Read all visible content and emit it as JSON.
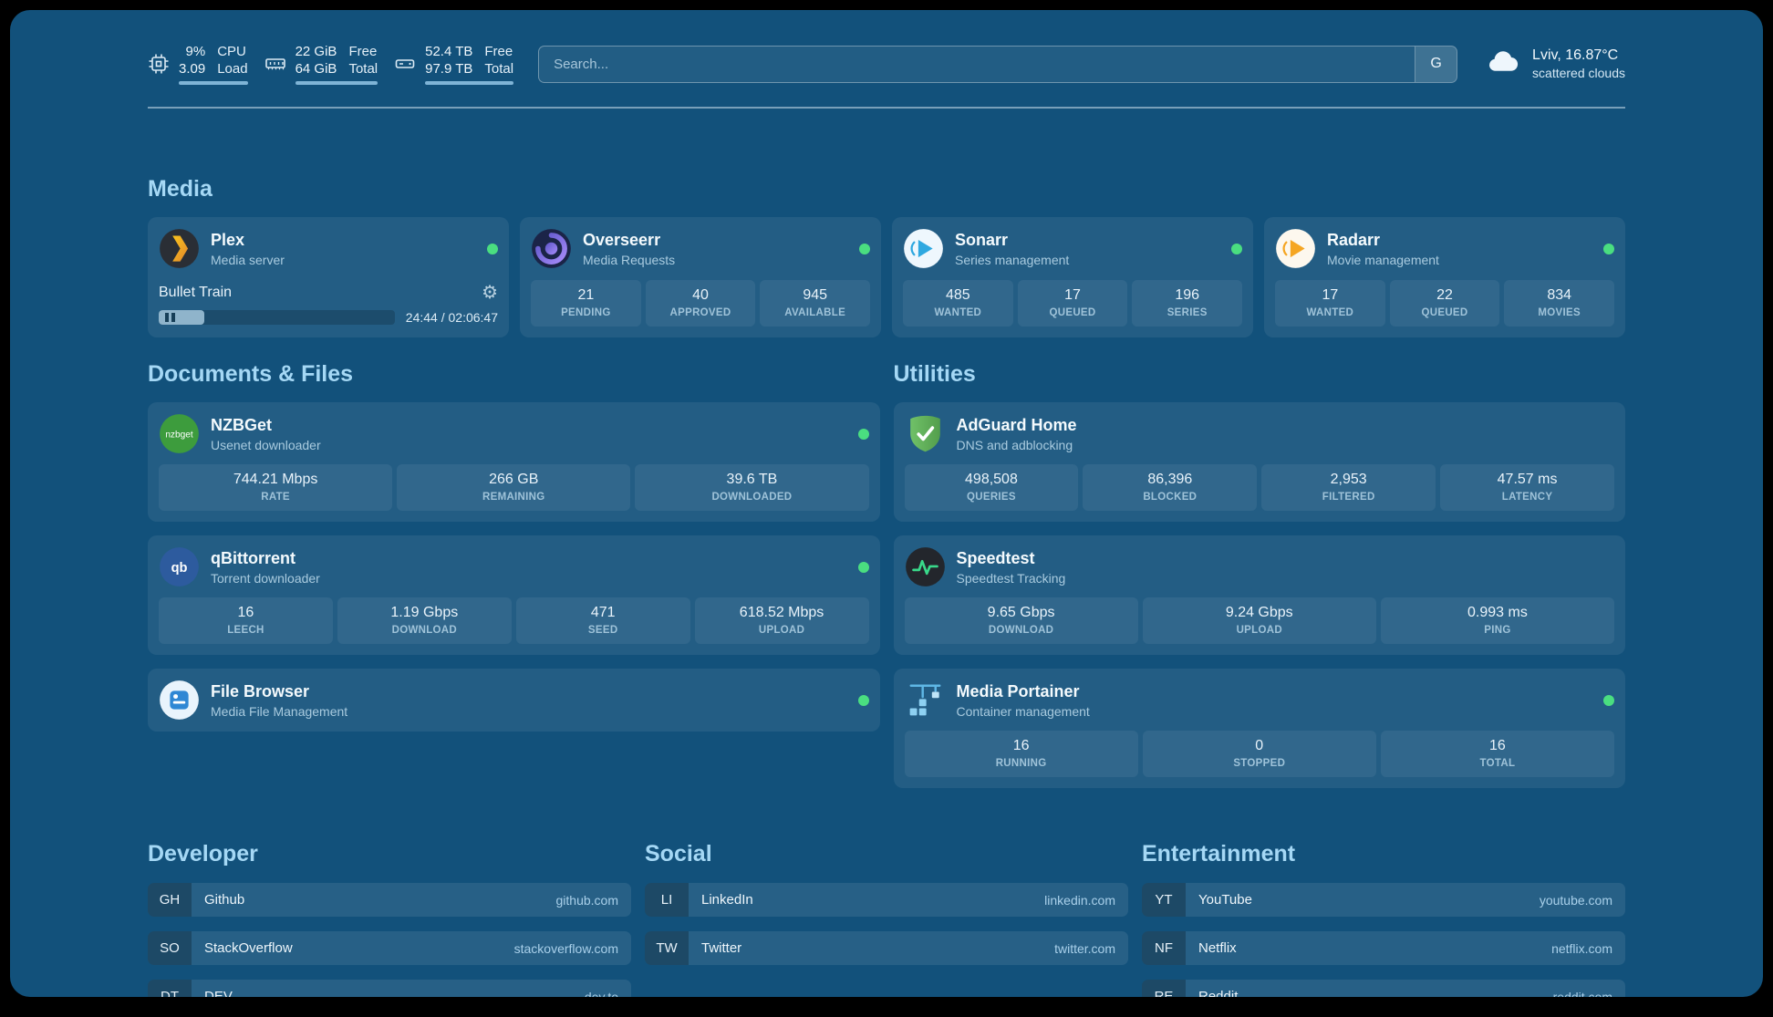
{
  "topbar": {
    "cpu": {
      "value_top": "9%",
      "label_top": "CPU",
      "value_bottom": "3.09",
      "label_bottom": "Load"
    },
    "memory": {
      "value_top": "22 GiB",
      "label_top": "Free",
      "value_bottom": "64 GiB",
      "label_bottom": "Total"
    },
    "disk": {
      "value_top": "52.4 TB",
      "label_top": "Free",
      "value_bottom": "97.9 TB",
      "label_bottom": "Total"
    },
    "search": {
      "placeholder": "Search...",
      "provider": "G"
    },
    "weather": {
      "location": "Lviv, 16.87°C",
      "condition": "scattered clouds"
    }
  },
  "sections": {
    "media": {
      "title": "Media"
    },
    "documents": {
      "title": "Documents & Files"
    },
    "utilities": {
      "title": "Utilities"
    }
  },
  "services": {
    "plex": {
      "name": "Plex",
      "subtitle": "Media server",
      "now_playing": {
        "title": "Bullet Train",
        "time": "24:44 / 02:06:47",
        "progress_percent": 19.5
      }
    },
    "overseerr": {
      "name": "Overseerr",
      "subtitle": "Media Requests",
      "stats": [
        {
          "value": "21",
          "label": "PENDING"
        },
        {
          "value": "40",
          "label": "APPROVED"
        },
        {
          "value": "945",
          "label": "AVAILABLE"
        }
      ]
    },
    "sonarr": {
      "name": "Sonarr",
      "subtitle": "Series management",
      "stats": [
        {
          "value": "485",
          "label": "WANTED"
        },
        {
          "value": "17",
          "label": "QUEUED"
        },
        {
          "value": "196",
          "label": "SERIES"
        }
      ]
    },
    "radarr": {
      "name": "Radarr",
      "subtitle": "Movie management",
      "stats": [
        {
          "value": "17",
          "label": "WANTED"
        },
        {
          "value": "22",
          "label": "QUEUED"
        },
        {
          "value": "834",
          "label": "MOVIES"
        }
      ]
    },
    "nzbget": {
      "name": "NZBGet",
      "subtitle": "Usenet downloader",
      "stats": [
        {
          "value": "744.21 Mbps",
          "label": "RATE"
        },
        {
          "value": "266 GB",
          "label": "REMAINING"
        },
        {
          "value": "39.6 TB",
          "label": "DOWNLOADED"
        }
      ]
    },
    "qbittorrent": {
      "name": "qBittorrent",
      "subtitle": "Torrent downloader",
      "stats": [
        {
          "value": "16",
          "label": "LEECH"
        },
        {
          "value": "1.19 Gbps",
          "label": "DOWNLOAD"
        },
        {
          "value": "471",
          "label": "SEED"
        },
        {
          "value": "618.52 Mbps",
          "label": "UPLOAD"
        }
      ]
    },
    "filebrowser": {
      "name": "File Browser",
      "subtitle": "Media File Management"
    },
    "adguard": {
      "name": "AdGuard Home",
      "subtitle": "DNS and adblocking",
      "stats": [
        {
          "value": "498,508",
          "label": "QUERIES"
        },
        {
          "value": "86,396",
          "label": "BLOCKED"
        },
        {
          "value": "2,953",
          "label": "FILTERED"
        },
        {
          "value": "47.57 ms",
          "label": "LATENCY"
        }
      ]
    },
    "speedtest": {
      "name": "Speedtest",
      "subtitle": "Speedtest Tracking",
      "stats": [
        {
          "value": "9.65 Gbps",
          "label": "DOWNLOAD"
        },
        {
          "value": "9.24 Gbps",
          "label": "UPLOAD"
        },
        {
          "value": "0.993 ms",
          "label": "PING"
        }
      ]
    },
    "portainer": {
      "name": "Media Portainer",
      "subtitle": "Container management",
      "stats": [
        {
          "value": "16",
          "label": "RUNNING"
        },
        {
          "value": "0",
          "label": "STOPPED"
        },
        {
          "value": "16",
          "label": "TOTAL"
        }
      ]
    }
  },
  "bookmarks": {
    "developer": {
      "title": "Developer",
      "items": [
        {
          "abbr": "GH",
          "name": "Github",
          "domain": "github.com"
        },
        {
          "abbr": "SO",
          "name": "StackOverflow",
          "domain": "stackoverflow.com"
        },
        {
          "abbr": "DT",
          "name": "DEV",
          "domain": "dev.to"
        }
      ]
    },
    "social": {
      "title": "Social",
      "items": [
        {
          "abbr": "LI",
          "name": "LinkedIn",
          "domain": "linkedin.com"
        },
        {
          "abbr": "TW",
          "name": "Twitter",
          "domain": "twitter.com"
        }
      ]
    },
    "entertainment": {
      "title": "Entertainment",
      "items": [
        {
          "abbr": "YT",
          "name": "YouTube",
          "domain": "youtube.com"
        },
        {
          "abbr": "NF",
          "name": "Netflix",
          "domain": "netflix.com"
        },
        {
          "abbr": "RE",
          "name": "Reddit",
          "domain": "reddit.com"
        }
      ]
    }
  },
  "icon_labels": {
    "nzbget": "nzbget",
    "qbittorrent": "qb"
  },
  "colors": {
    "background": "#12517b",
    "status_online": "#4ade80",
    "heading": "#a5d8f5",
    "plex_brand": "#e5a00d",
    "adguard_green": "#68b95f",
    "speedtest_green": "#39d98a"
  }
}
